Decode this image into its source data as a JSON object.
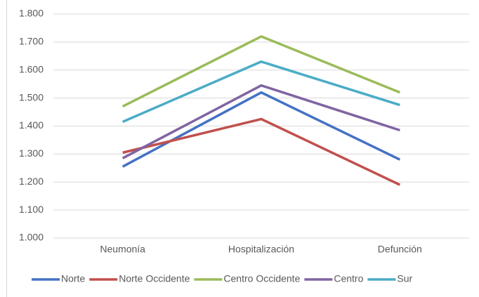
{
  "chart_data": {
    "type": "line",
    "categories": [
      "Neumonía",
      "Hospitalización",
      "Defunción"
    ],
    "series": [
      {
        "name": "Norte",
        "color": "#4472c4",
        "values": [
          1.255,
          1.52,
          1.28
        ]
      },
      {
        "name": "Norte Occidente",
        "color": "#c0504d",
        "values": [
          1.305,
          1.425,
          1.19
        ]
      },
      {
        "name": "Centro Occidente",
        "color": "#9bbb59",
        "values": [
          1.47,
          1.72,
          1.52
        ]
      },
      {
        "name": "Centro",
        "color": "#8064a2",
        "values": [
          1.285,
          1.545,
          1.385
        ]
      },
      {
        "name": "Sur",
        "color": "#4bacc6",
        "values": [
          1.415,
          1.63,
          1.475
        ]
      }
    ],
    "ylim": [
      1.0,
      1.8
    ],
    "yticks": [
      {
        "value": 1.0,
        "label": "1.000"
      },
      {
        "value": 1.1,
        "label": "1.100"
      },
      {
        "value": 1.2,
        "label": "1.200"
      },
      {
        "value": 1.3,
        "label": "1.300"
      },
      {
        "value": 1.4,
        "label": "1.400"
      },
      {
        "value": 1.5,
        "label": "1.500"
      },
      {
        "value": 1.6,
        "label": "1.600"
      },
      {
        "value": 1.7,
        "label": "1.700"
      },
      {
        "value": 1.8,
        "label": "1.800"
      }
    ],
    "grid": true,
    "legend": "bottom"
  }
}
